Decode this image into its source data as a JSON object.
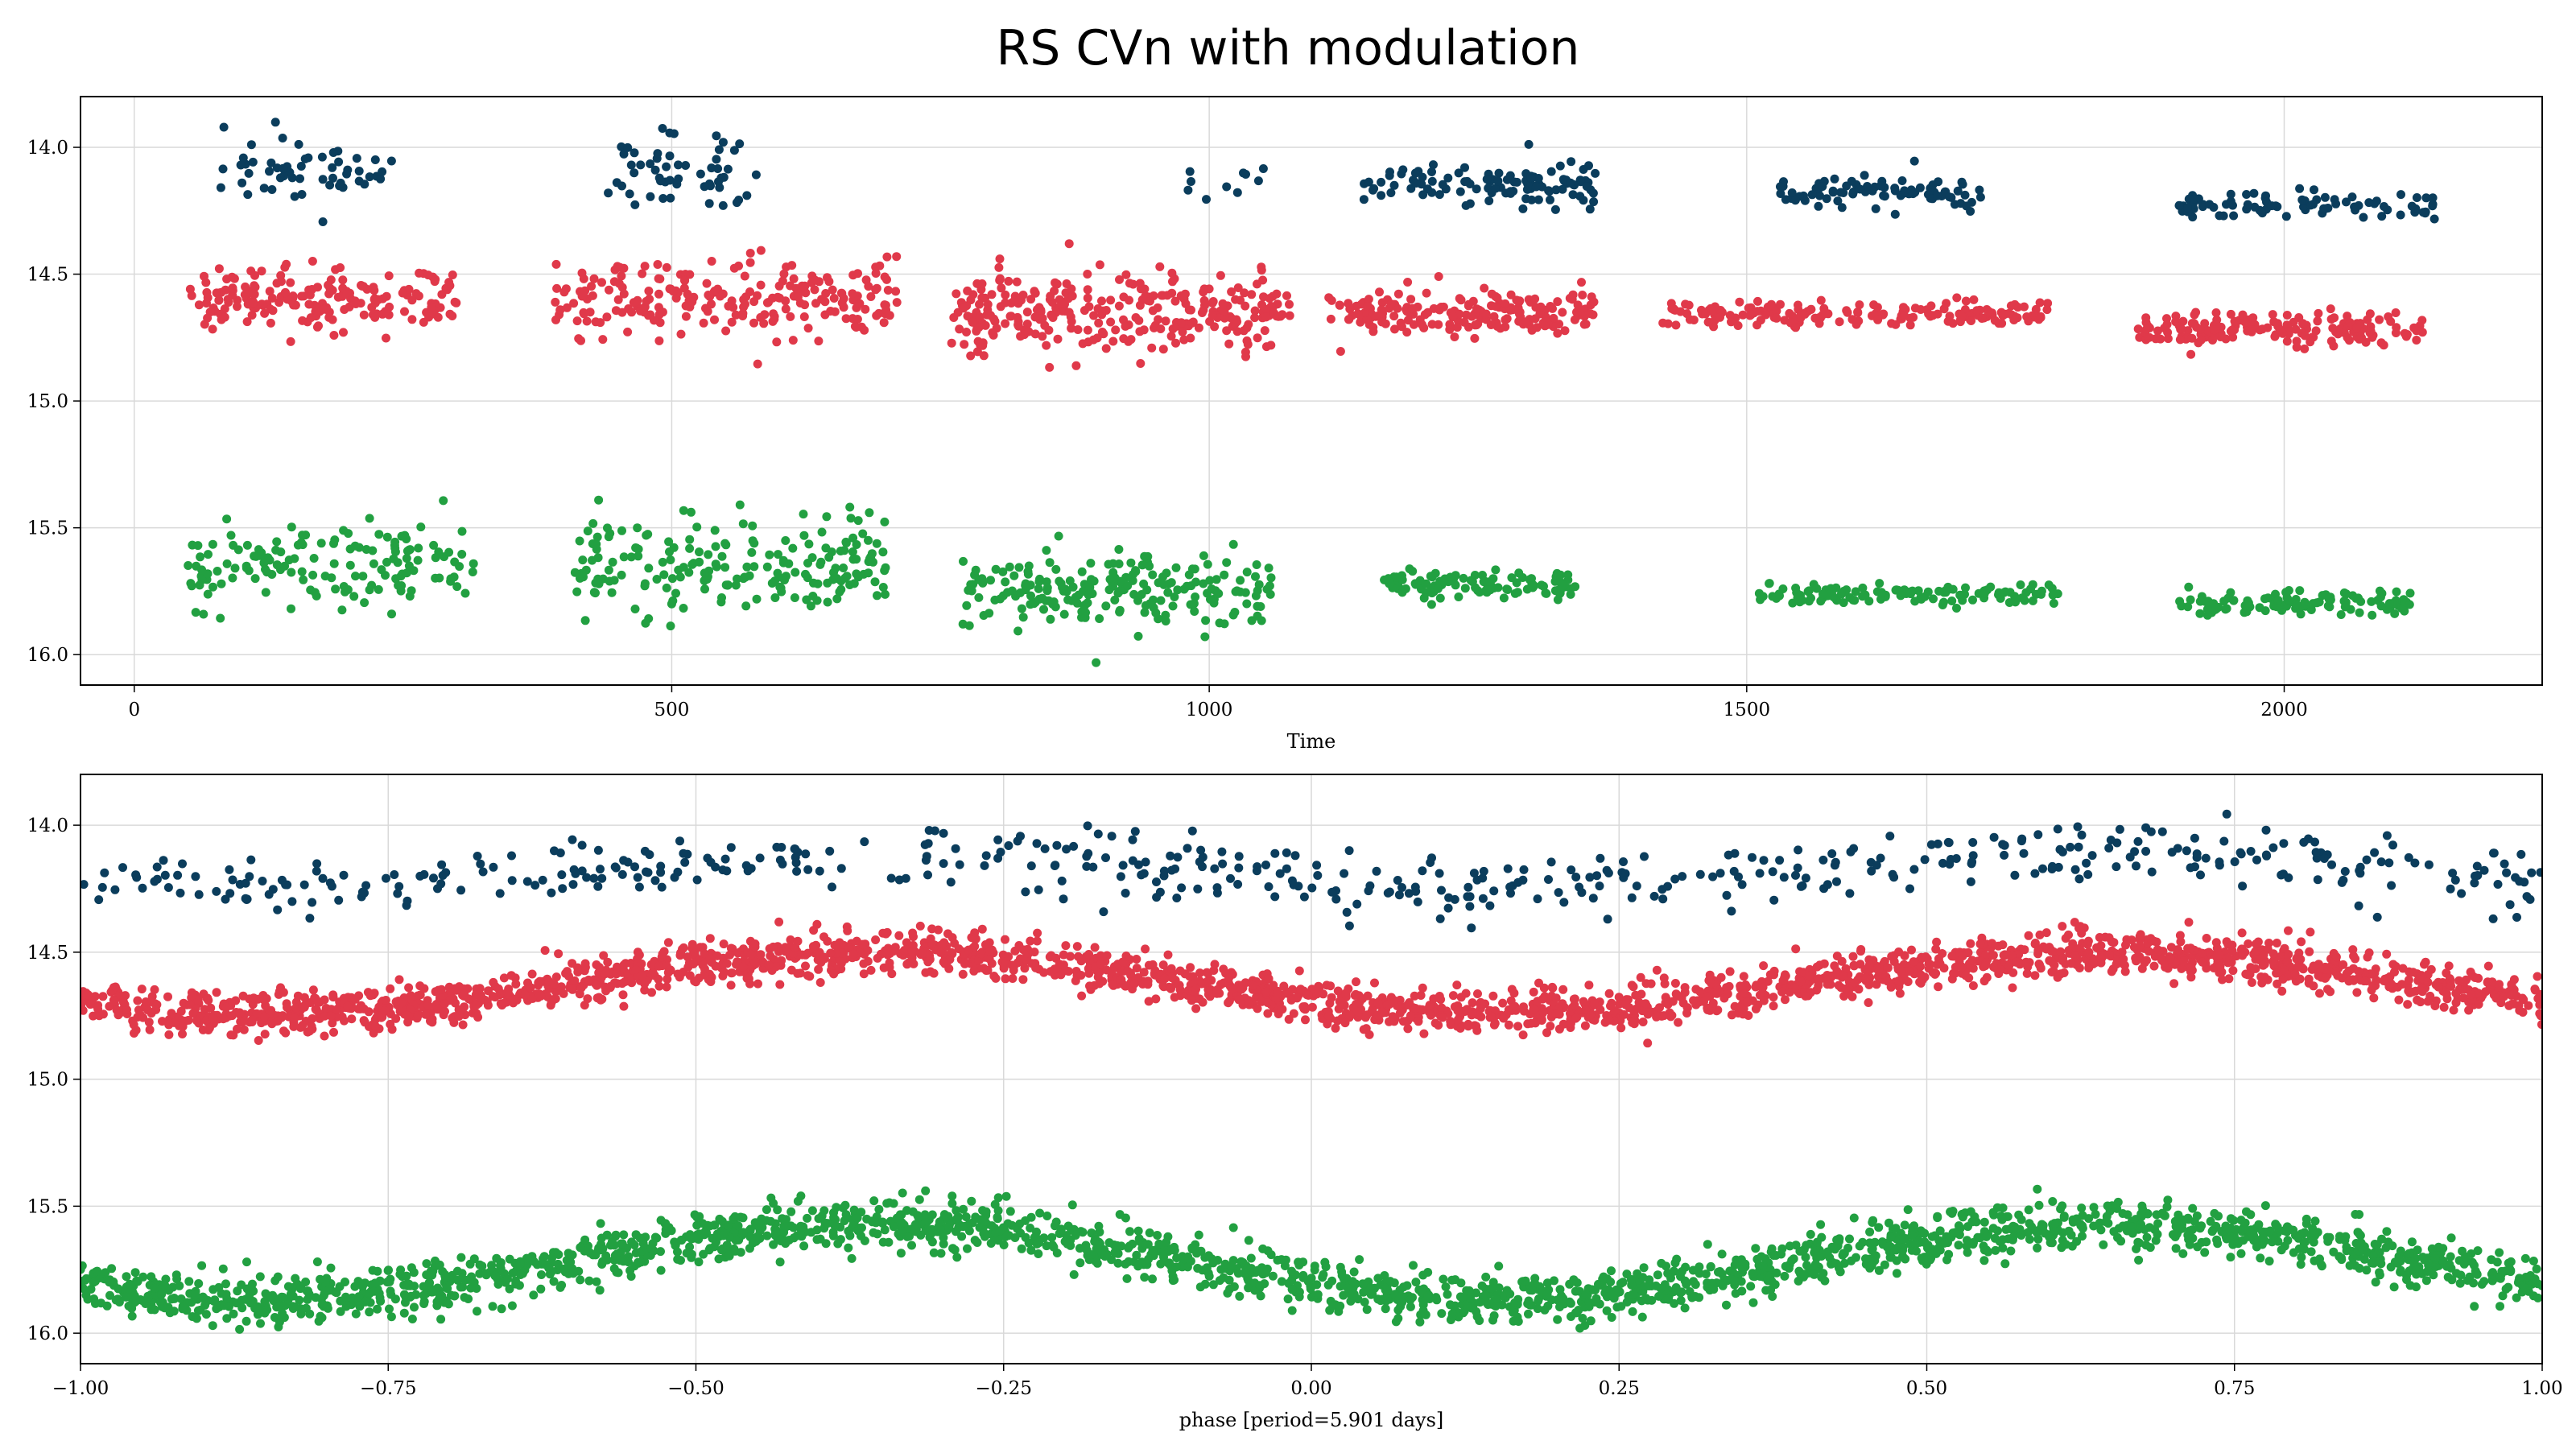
{
  "figure": {
    "title": "RS CVn with modulation"
  },
  "chart_data": [
    {
      "type": "scatter",
      "title": "",
      "xlabel": "Time",
      "ylabel": "",
      "xlim": [
        -50,
        2240
      ],
      "ylim": [
        16.12,
        13.8
      ],
      "y_inverted": true,
      "grid": true,
      "x_ticks": [
        0,
        500,
        1000,
        1500,
        2000
      ],
      "x_tick_labels": [
        "0",
        "500",
        "1000",
        "1500",
        "2000"
      ],
      "y_ticks": [
        14.0,
        14.5,
        15.0,
        15.5,
        16.0
      ],
      "y_tick_labels": [
        "14.0",
        "14.5",
        "15.0",
        "15.5",
        "16.0"
      ],
      "series": [
        {
          "color": "#0b3d5c",
          "seasons": [
            {
              "x_start": 80,
              "x_end": 245,
              "y_center": 14.1,
              "y_spread": 0.13,
              "count": 55
            },
            {
              "x_start": 440,
              "x_end": 580,
              "y_center": 14.1,
              "y_spread": 0.15,
              "count": 55
            },
            {
              "x_start": 980,
              "x_end": 1060,
              "y_center": 14.15,
              "y_spread": 0.1,
              "count": 10
            },
            {
              "x_start": 1140,
              "x_end": 1360,
              "y_center": 14.15,
              "y_spread": 0.08,
              "count": 110
            },
            {
              "x_start": 1530,
              "x_end": 1720,
              "y_center": 14.18,
              "y_spread": 0.06,
              "count": 85
            },
            {
              "x_start": 1900,
              "x_end": 2140,
              "y_center": 14.23,
              "y_spread": 0.05,
              "count": 85
            }
          ]
        },
        {
          "color": "#e0394a",
          "seasons": [
            {
              "x_start": 50,
              "x_end": 300,
              "y_center": 14.6,
              "y_spread": 0.12,
              "count": 190
            },
            {
              "x_start": 390,
              "x_end": 710,
              "y_center": 14.6,
              "y_spread": 0.16,
              "count": 230
            },
            {
              "x_start": 760,
              "x_end": 1080,
              "y_center": 14.65,
              "y_spread": 0.14,
              "count": 300
            },
            {
              "x_start": 1110,
              "x_end": 1360,
              "y_center": 14.65,
              "y_spread": 0.09,
              "count": 190
            },
            {
              "x_start": 1420,
              "x_end": 1780,
              "y_center": 14.66,
              "y_spread": 0.05,
              "count": 180
            },
            {
              "x_start": 1860,
              "x_end": 2130,
              "y_center": 14.72,
              "y_spread": 0.06,
              "count": 170
            }
          ]
        },
        {
          "color": "#22a041",
          "seasons": [
            {
              "x_start": 50,
              "x_end": 320,
              "y_center": 15.65,
              "y_spread": 0.16,
              "count": 150
            },
            {
              "x_start": 410,
              "x_end": 700,
              "y_center": 15.65,
              "y_spread": 0.18,
              "count": 200
            },
            {
              "x_start": 770,
              "x_end": 1060,
              "y_center": 15.75,
              "y_spread": 0.15,
              "count": 210
            },
            {
              "x_start": 1160,
              "x_end": 1350,
              "y_center": 15.72,
              "y_spread": 0.06,
              "count": 110
            },
            {
              "x_start": 1510,
              "x_end": 1790,
              "y_center": 15.76,
              "y_spread": 0.04,
              "count": 120
            },
            {
              "x_start": 1900,
              "x_end": 2120,
              "y_center": 15.8,
              "y_spread": 0.05,
              "count": 110
            }
          ]
        }
      ]
    },
    {
      "type": "scatter",
      "title": "",
      "xlabel": "phase [period=5.901 days]",
      "ylabel": "",
      "xlim": [
        -1.0,
        1.0
      ],
      "ylim": [
        16.12,
        13.8
      ],
      "y_inverted": true,
      "grid": true,
      "x_ticks": [
        -1.0,
        -0.75,
        -0.5,
        -0.25,
        0.0,
        0.25,
        0.5,
        0.75,
        1.0
      ],
      "x_tick_labels": [
        "−1.00",
        "−0.75",
        "−0.50",
        "−0.25",
        "0.00",
        "0.25",
        "0.50",
        "0.75",
        "1.00"
      ],
      "y_ticks": [
        14.0,
        14.5,
        15.0,
        15.5,
        16.0
      ],
      "y_tick_labels": [
        "14.0",
        "14.5",
        "15.0",
        "15.5",
        "16.0"
      ],
      "series": [
        {
          "color": "#0b3d5c",
          "count": 500,
          "mean": 14.18,
          "amplitude": 0.06,
          "scatter": 0.1
        },
        {
          "color": "#e0394a",
          "count": 2400,
          "mean": 14.62,
          "amplitude": 0.12,
          "scatter": 0.07
        },
        {
          "color": "#22a041",
          "count": 2200,
          "mean": 15.72,
          "amplitude": 0.15,
          "scatter": 0.08
        }
      ]
    }
  ]
}
